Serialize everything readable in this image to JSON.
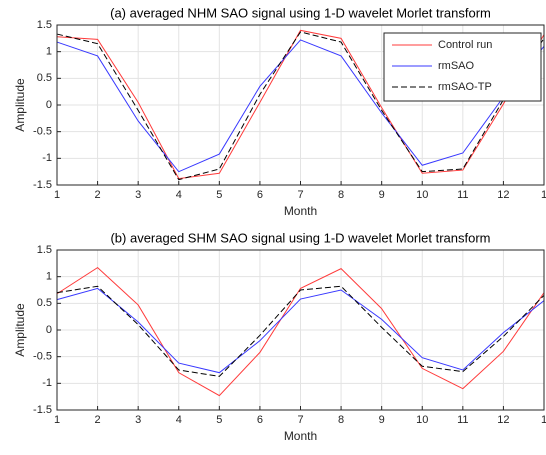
{
  "chart_data": [
    {
      "type": "line",
      "title": "(a) averaged NHM SAO signal using 1-D wavelet Morlet transform",
      "x_label": "Month",
      "y_label": "Amplitude",
      "x": [
        1,
        2,
        3,
        4,
        5,
        6,
        7,
        8,
        9,
        10,
        11,
        12,
        13
      ],
      "xlim": [
        1,
        13
      ],
      "xticks": [
        1,
        2,
        3,
        4,
        5,
        6,
        7,
        8,
        9,
        10,
        11,
        12,
        {
          "value": 13,
          "label": "1"
        }
      ],
      "ylim": [
        -1.5,
        1.5
      ],
      "yticks": [
        -1.5,
        -1,
        -0.5,
        0,
        0.5,
        1,
        1.5
      ],
      "grid": true,
      "legend": "northeast",
      "series": [
        {
          "name": "Control run",
          "color": "#ff3b3b",
          "dash": "solid",
          "values": [
            1.28,
            1.23,
            0.05,
            -1.38,
            -1.28,
            0.05,
            1.4,
            1.25,
            -0.05,
            -1.28,
            -1.22,
            0.02,
            1.32
          ]
        },
        {
          "name": "rmSAO",
          "color": "#3838ff",
          "dash": "solid",
          "values": [
            1.18,
            0.92,
            -0.3,
            -1.25,
            -0.92,
            0.35,
            1.22,
            0.92,
            -0.15,
            -1.13,
            -0.9,
            0.15,
            1.1
          ]
        },
        {
          "name": "rmSAO-TP",
          "color": "#000000",
          "dash": "dashed",
          "values": [
            1.33,
            1.15,
            -0.1,
            -1.4,
            -1.2,
            0.2,
            1.37,
            1.18,
            -0.1,
            -1.25,
            -1.2,
            0.1,
            1.25
          ]
        }
      ]
    },
    {
      "type": "line",
      "title": "(b) averaged SHM SAO signal using 1-D wavelet Morlet transform",
      "x_label": "Month",
      "y_label": "Amplitude",
      "x": [
        1,
        2,
        3,
        4,
        5,
        6,
        7,
        8,
        9,
        10,
        11,
        12,
        13
      ],
      "xlim": [
        1,
        13
      ],
      "xticks": [
        1,
        2,
        3,
        4,
        5,
        6,
        7,
        8,
        9,
        10,
        11,
        12,
        {
          "value": 13,
          "label": "1"
        }
      ],
      "ylim": [
        -1.5,
        1.5
      ],
      "yticks": [
        -1.5,
        -1,
        -0.5,
        0,
        0.5,
        1,
        1.5
      ],
      "grid": true,
      "series": [
        {
          "color": "#ff3b3b",
          "dash": "solid",
          "values": [
            0.68,
            1.17,
            0.47,
            -0.8,
            -1.23,
            -0.42,
            0.78,
            1.15,
            0.4,
            -0.72,
            -1.1,
            -0.4,
            0.7
          ]
        },
        {
          "color": "#3838ff",
          "dash": "solid",
          "values": [
            0.57,
            0.78,
            0.15,
            -0.62,
            -0.8,
            -0.2,
            0.58,
            0.75,
            0.2,
            -0.52,
            -0.75,
            -0.05,
            0.55
          ]
        },
        {
          "color": "#000000",
          "dash": "dashed",
          "values": [
            0.7,
            0.82,
            0.1,
            -0.75,
            -0.87,
            -0.1,
            0.75,
            0.82,
            0.05,
            -0.68,
            -0.78,
            -0.12,
            0.65
          ]
        }
      ]
    }
  ]
}
